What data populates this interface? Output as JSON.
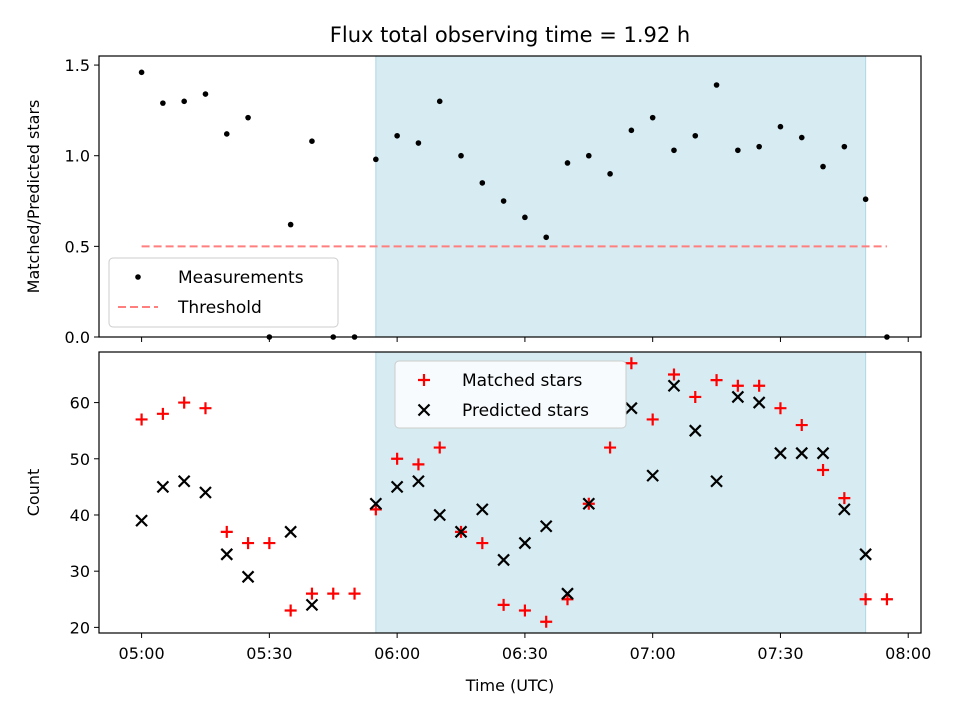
{
  "title": "Flux total observing time = 1.92 h",
  "colors": {
    "measurement": "#000000",
    "threshold": "#ff7f7f",
    "matched": "#ff0000",
    "predicted": "#000000",
    "shade": "#add8e6"
  },
  "chart_data": [
    {
      "type": "scatter",
      "ylabel": "Matched/Predicted stars",
      "ylim": [
        0,
        1.55
      ],
      "yticks": [
        0.0,
        0.5,
        1.0,
        1.5
      ],
      "ytick_labels": [
        "0.0",
        "0.5",
        "1.0",
        "1.5"
      ],
      "legend": {
        "placement": "lower-left",
        "entries": [
          "Measurements",
          "Threshold"
        ]
      },
      "shaded_x_range": [
        "05:55",
        "07:50"
      ],
      "threshold": {
        "name": "Threshold",
        "value": 0.5,
        "x_range": [
          "05:00",
          "07:55"
        ],
        "style": "dashed"
      },
      "series": [
        {
          "name": "Measurements",
          "marker": "dot",
          "x": [
            "05:00",
            "05:05",
            "05:10",
            "05:15",
            "05:20",
            "05:25",
            "05:30",
            "05:35",
            "05:40",
            "05:45",
            "05:50",
            "05:55",
            "06:00",
            "06:05",
            "06:10",
            "06:15",
            "06:20",
            "06:25",
            "06:30",
            "06:35",
            "06:40",
            "06:45",
            "06:50",
            "06:55",
            "07:00",
            "07:05",
            "07:10",
            "07:15",
            "07:20",
            "07:25",
            "07:30",
            "07:35",
            "07:40",
            "07:45",
            "07:50",
            "07:55"
          ],
          "y": [
            1.46,
            1.29,
            1.3,
            1.34,
            1.12,
            1.21,
            0.0,
            0.62,
            1.08,
            0.0,
            0.0,
            0.98,
            1.11,
            1.07,
            1.3,
            1.0,
            0.85,
            0.75,
            0.66,
            0.55,
            0.96,
            1.0,
            0.9,
            1.14,
            1.21,
            1.03,
            1.11,
            1.39,
            1.03,
            1.05,
            1.16,
            1.1,
            0.94,
            1.05,
            0.76,
            0.0
          ]
        }
      ]
    },
    {
      "type": "scatter",
      "xlabel": "Time (UTC)",
      "ylabel": "Count",
      "ylim": [
        19,
        69
      ],
      "yticks": [
        20,
        30,
        40,
        50,
        60
      ],
      "ytick_labels": [
        "20",
        "30",
        "40",
        "50",
        "60"
      ],
      "xlim": [
        "04:50",
        "08:03"
      ],
      "xticks": [
        "05:00",
        "05:30",
        "06:00",
        "06:30",
        "07:00",
        "07:30",
        "08:00"
      ],
      "xtick_labels": [
        "05:00",
        "05:30",
        "06:00",
        "06:30",
        "07:00",
        "07:30",
        "08:00"
      ],
      "legend": {
        "placement": "upper-center",
        "entries": [
          "Matched stars",
          "Predicted stars"
        ]
      },
      "shaded_x_range": [
        "05:55",
        "07:50"
      ],
      "series": [
        {
          "name": "Matched stars",
          "marker": "plus",
          "x": [
            "05:00",
            "05:05",
            "05:10",
            "05:15",
            "05:20",
            "05:25",
            "05:30",
            "05:35",
            "05:40",
            "05:45",
            "05:50",
            "05:55",
            "06:00",
            "06:05",
            "06:10",
            "06:15",
            "06:20",
            "06:25",
            "06:30",
            "06:35",
            "06:40",
            "06:45",
            "06:50",
            "06:55",
            "07:00",
            "07:05",
            "07:10",
            "07:15",
            "07:20",
            "07:25",
            "07:30",
            "07:35",
            "07:40",
            "07:45",
            "07:50",
            "07:55"
          ],
          "y": [
            57,
            58,
            60,
            59,
            37,
            35,
            35,
            23,
            26,
            26,
            26,
            41,
            50,
            49,
            52,
            37,
            35,
            24,
            23,
            21,
            25,
            42,
            52,
            67,
            57,
            65,
            61,
            64,
            63,
            63,
            59,
            56,
            48,
            43,
            25,
            25
          ]
        },
        {
          "name": "Predicted stars",
          "marker": "x",
          "x": [
            "05:00",
            "05:05",
            "05:10",
            "05:15",
            "05:20",
            "05:25",
            "05:35",
            "05:40",
            "05:55",
            "06:00",
            "06:05",
            "06:10",
            "06:15",
            "06:20",
            "06:25",
            "06:30",
            "06:35",
            "06:40",
            "06:45",
            "06:55",
            "07:00",
            "07:05",
            "07:10",
            "07:15",
            "07:20",
            "07:25",
            "07:30",
            "07:35",
            "07:40",
            "07:45",
            "07:50"
          ],
          "y": [
            39,
            45,
            46,
            44,
            33,
            29,
            37,
            24,
            42,
            45,
            46,
            40,
            37,
            41,
            32,
            35,
            38,
            26,
            42,
            59,
            47,
            63,
            55,
            46,
            61,
            60,
            51,
            51,
            51,
            41,
            33
          ]
        }
      ]
    }
  ]
}
